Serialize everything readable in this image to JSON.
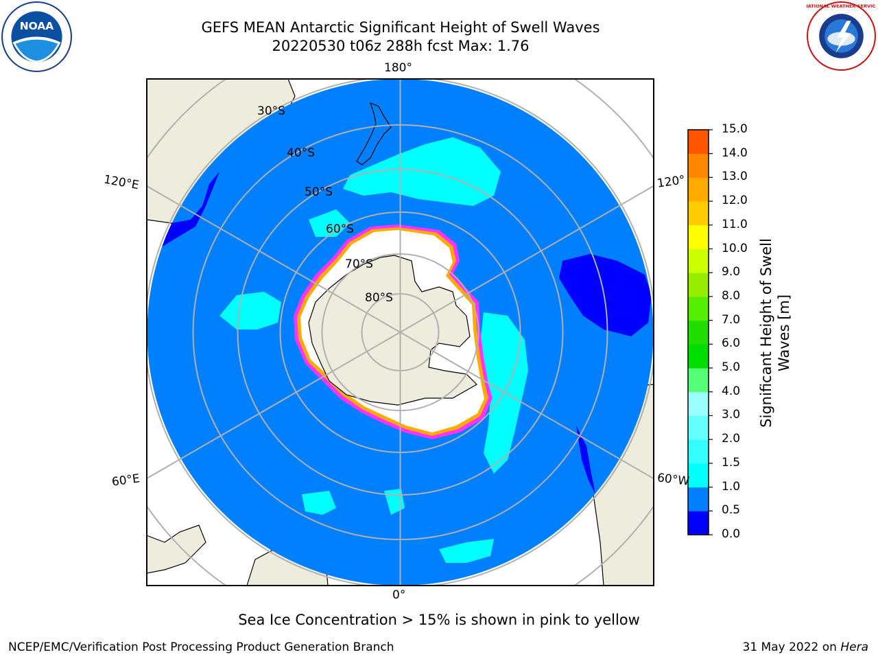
{
  "title": {
    "line1": "GEFS MEAN Antarctic Significant Height of Swell Waves",
    "line2": "20220530 t06z 288h fcst   Max: 1.76"
  },
  "map": {
    "projection": "south-polar-stereographic",
    "center": "South Pole",
    "ocean_color": "#0080ff",
    "land_color": "#eeecdc",
    "ice_edge_colors": [
      "#ff33ff",
      "#ffaa00",
      "#ffff33"
    ],
    "meridian_labels": {
      "top": "180°",
      "bottom": "0°",
      "upper_left": "120°E",
      "upper_right": "120°",
      "lower_left": "60°E",
      "lower_right": "60°W"
    },
    "latitude_labels": [
      "30°S",
      "40°S",
      "50°S",
      "60°S",
      "70°S",
      "80°S"
    ]
  },
  "colorbar": {
    "label": "Significant Height of Swell Waves [m]",
    "ticks": [
      "15.0",
      "14.0",
      "13.0",
      "12.0",
      "11.0",
      "10.0",
      "9.0",
      "8.0",
      "7.0",
      "6.0",
      "5.0",
      "4.0",
      "3.0",
      "2.0",
      "1.5",
      "1.0",
      "0.5",
      "0.0"
    ],
    "colors": [
      "#0000ff",
      "#0080ff",
      "#00ffff",
      "#33ffff",
      "#66ffff",
      "#99ffff",
      "#55ff77",
      "#00dd00",
      "#22dd00",
      "#55ee00",
      "#99ee00",
      "#ccff00",
      "#ffff00",
      "#ffcc00",
      "#ffaa00",
      "#ff8800",
      "#ff5500",
      "#ff2200",
      "#ff0000"
    ]
  },
  "subcaption": "Sea Ice Concentration > 15% is shown in pink to yellow",
  "footer": {
    "left": "NCEP/EMC/Verification Post Processing Product Generation Branch",
    "right_date": "31 May 2022 on ",
    "right_host": "Hera"
  },
  "logos": {
    "left": {
      "name": "noaa-logo",
      "text": "NOAA"
    },
    "right": {
      "name": "nws-logo",
      "text": "NATIONAL WEATHER SERVICE"
    }
  }
}
